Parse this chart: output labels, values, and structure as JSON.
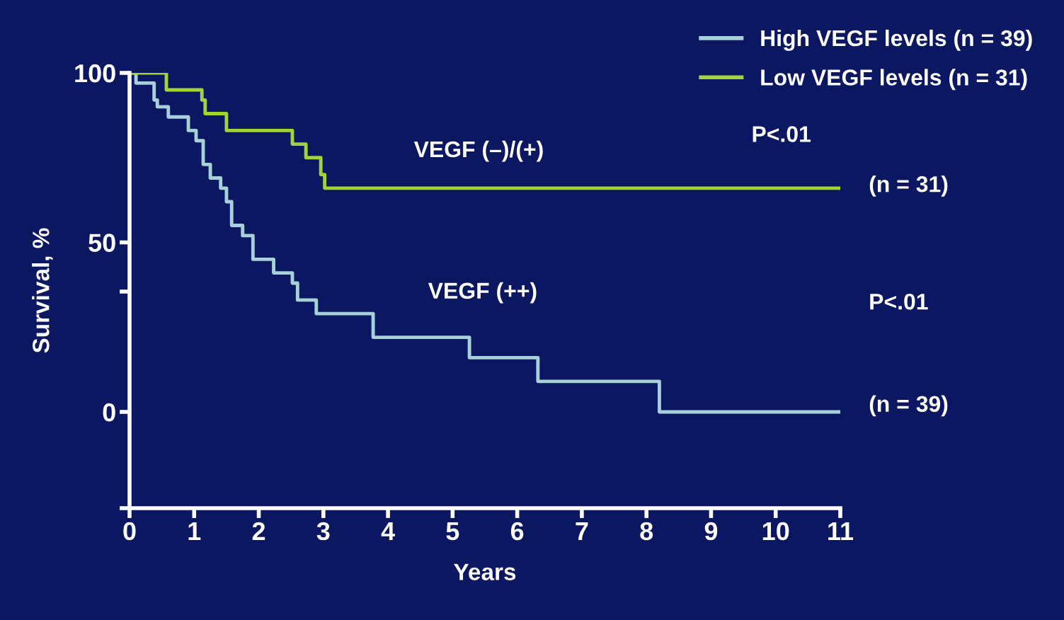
{
  "chart_data": {
    "type": "step",
    "xlabel": "Years",
    "ylabel": "Survival, %",
    "xlim": [
      0,
      11
    ],
    "xticks": [
      0,
      1,
      2,
      3,
      4,
      5,
      6,
      7,
      8,
      9,
      10,
      11
    ],
    "ylim": [
      -28.4,
      100
    ],
    "yticks": [
      0,
      50,
      100,
      {
        "value": 35.5,
        "label": null
      },
      {
        "value": -28.4,
        "label": null
      }
    ],
    "grid": false,
    "legend": "top right",
    "series": [
      {
        "name": "High VEGF levels (n = 39)",
        "color": "#a8d0d8",
        "x": [
          0,
          0.1,
          0.38,
          0.43,
          0.6,
          0.91,
          1.03,
          1.14,
          1.25,
          1.41,
          1.5,
          1.58,
          1.75,
          1.91,
          2.23,
          2.52,
          2.6,
          2.89,
          3.77,
          5.26,
          6.32,
          8.2,
          11
        ],
        "values": [
          100,
          97,
          92,
          90,
          87,
          83,
          80,
          73,
          69,
          66,
          62,
          55,
          52,
          45,
          41,
          38,
          33,
          29,
          22,
          16,
          9,
          0,
          0
        ]
      },
      {
        "name": "Low VEGF levels (n = 31)",
        "color": "#a4d23c",
        "x": [
          0,
          0.57,
          1.12,
          1.17,
          1.5,
          2.52,
          2.73,
          2.96,
          3.02,
          11
        ],
        "values": [
          100,
          95,
          92,
          88,
          83,
          79,
          75,
          70,
          66,
          66
        ]
      }
    ],
    "annotations": [
      "VEGF (–)/(+)",
      "VEGF (++)",
      "P<.01",
      "P<.01",
      "(n = 31)",
      "(n = 39)"
    ]
  }
}
